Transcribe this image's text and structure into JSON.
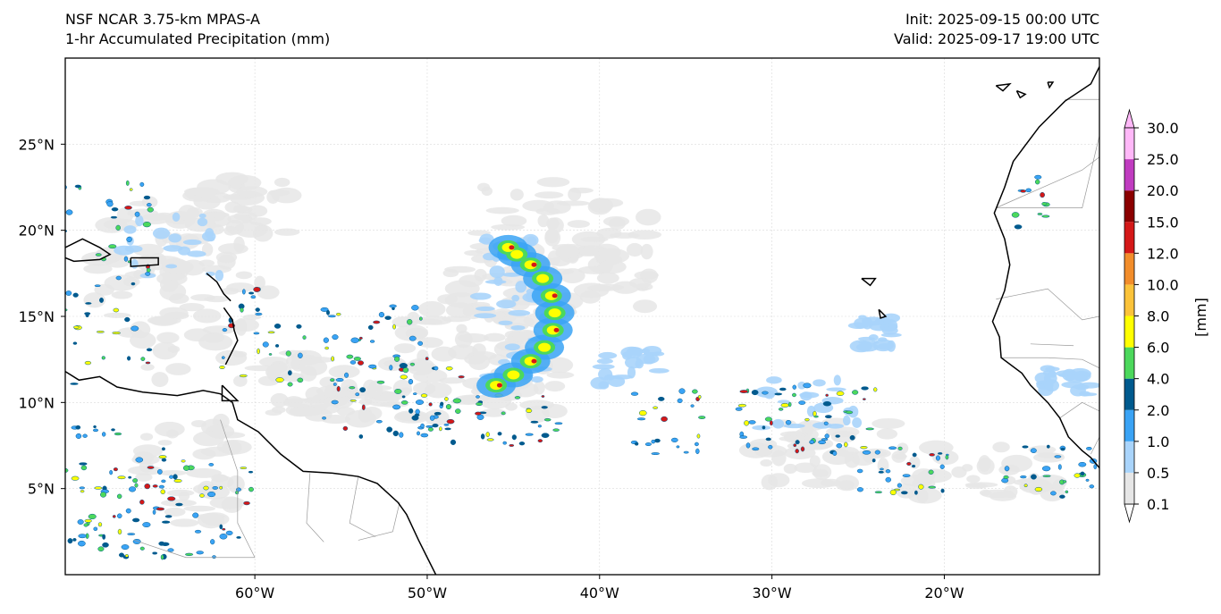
{
  "header": {
    "model_title": "NSF NCAR 3.75-km MPAS-A",
    "field_title": "1-hr Accumulated Precipitation (mm)",
    "init_text": "Init: 2025-09-15 00:00 UTC",
    "valid_text": "Valid: 2025-09-17 19:00 UTC"
  },
  "map": {
    "lon_range": [
      -71,
      -11
    ],
    "lat_range": [
      0,
      30
    ],
    "lon_ticks": [
      {
        "value": -60,
        "label": "60°W"
      },
      {
        "value": -50,
        "label": "50°W"
      },
      {
        "value": -40,
        "label": "40°W"
      },
      {
        "value": -30,
        "label": "30°W"
      },
      {
        "value": -20,
        "label": "20°W"
      }
    ],
    "lat_ticks": [
      {
        "value": 5,
        "label": "5°N"
      },
      {
        "value": 10,
        "label": "10°N"
      },
      {
        "value": 15,
        "label": "15°N"
      },
      {
        "value": 20,
        "label": "20°N"
      },
      {
        "value": 25,
        "label": "25°N"
      }
    ],
    "gridlines": true
  },
  "colorbar": {
    "unit_label": "[mm]",
    "levels": [
      "0.1",
      "0.5",
      "1.0",
      "2.0",
      "4.0",
      "6.0",
      "8.0",
      "10.0",
      "12.0",
      "15.0",
      "20.0",
      "25.0",
      "30.0"
    ],
    "colors": [
      "#e6e6e6",
      "#a9d4fb",
      "#3aa3f5",
      "#005a8e",
      "#4cd85c",
      "#ffff00",
      "#fbc33a",
      "#f28d2b",
      "#d41818",
      "#8b0000",
      "#c03cc0",
      "#ffb8f8"
    ],
    "extend_low_color": "#ffffff",
    "extend_high_color": "#ffb8f8"
  },
  "colors": {
    "coast": "#000000",
    "border": "#9a9a9a",
    "grid": "#d9d9d9",
    "background": "#ffffff"
  }
}
